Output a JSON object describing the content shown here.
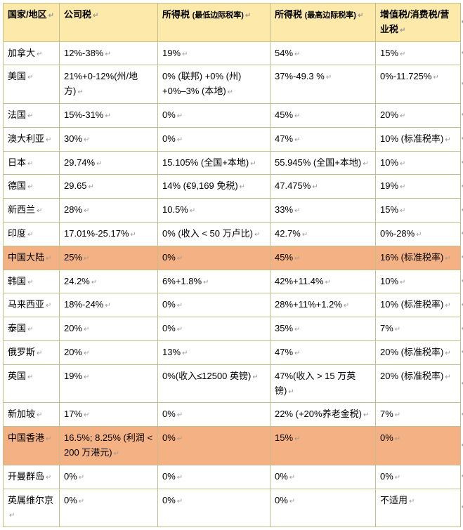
{
  "table": {
    "header_bg": "#fde9a9",
    "highlight_bg": "#f4b183",
    "border_color": "#bfbf8f",
    "columns": [
      "国家/地区",
      "公司税",
      "所得税 (最低边际税率)",
      "所得税 (最高边际税率)",
      "增值税/消费税/营业税"
    ],
    "col_header_sub": [
      "",
      "",
      "(最低边际税率)",
      "(最高边际税率)",
      ""
    ],
    "rows": [
      {
        "hl": false,
        "cells": [
          "加拿大",
          "12%-38%",
          "19%",
          "54%",
          "15%"
        ]
      },
      {
        "hl": false,
        "cells": [
          "美国",
          "21%+0-12%(州/地方)",
          "0% (联邦) +0% (州) +0%–3% (本地)",
          "37%-49.3 %",
          "0%-11.725%"
        ]
      },
      {
        "hl": false,
        "cells": [
          "法国",
          "15%-31%",
          "0%",
          "45%",
          "20%"
        ]
      },
      {
        "hl": false,
        "cells": [
          "澳大利亚",
          "30%",
          "0%",
          "47%",
          "10% (标准税率)"
        ]
      },
      {
        "hl": false,
        "cells": [
          "日本",
          "29.74%",
          "15.105% (全国+本地)",
          "55.945% (全国+本地)",
          "10%"
        ]
      },
      {
        "hl": false,
        "cells": [
          "德国",
          "29.65",
          "14% (€9,169 免税)",
          "47.475%",
          "19%"
        ]
      },
      {
        "hl": false,
        "cells": [
          "新西兰",
          "28%",
          "10.5%",
          "33%",
          "15%"
        ]
      },
      {
        "hl": false,
        "cells": [
          "印度",
          "17.01%-25.17%",
          "0% (收入 < 50 万卢比)",
          "42.7%",
          "0%-28%"
        ]
      },
      {
        "hl": true,
        "cells": [
          "中国大陆",
          "25%",
          "0%",
          "45%",
          "16% (标准税率)"
        ]
      },
      {
        "hl": false,
        "cells": [
          "韩国",
          "24.2%",
          "6%+1.8%",
          "42%+11.4%",
          "10%"
        ]
      },
      {
        "hl": false,
        "cells": [
          "马来西亚",
          "18%-24%",
          "0%",
          "28%+11%+1.2%",
          "10% (标准税率)"
        ]
      },
      {
        "hl": false,
        "cells": [
          "泰国",
          "20%",
          "0%",
          "35%",
          "7%"
        ]
      },
      {
        "hl": false,
        "cells": [
          "俄罗斯",
          "20%",
          "13%",
          "47%",
          "20% (标准税率)"
        ]
      },
      {
        "hl": false,
        "cells": [
          "英国",
          "19%",
          "0%(收入≤12500 英镑)",
          "47%(收入 > 15 万英镑)",
          "20% (标准税率)"
        ]
      },
      {
        "hl": false,
        "cells": [
          "新加坡",
          "17%",
          "0%",
          "22% (+20%养老金税)",
          "7%"
        ]
      },
      {
        "hl": true,
        "cells": [
          "中国香港",
          "16.5%; 8.25% (利润 < 200 万港元)",
          "0%",
          "15%",
          "0%"
        ]
      },
      {
        "hl": false,
        "cells": [
          "开曼群岛",
          "0%",
          "0%",
          "0%",
          "0%"
        ]
      },
      {
        "hl": false,
        "cells": [
          "英属维尔京",
          "0%",
          "0%",
          "0%",
          "不适用"
        ]
      }
    ],
    "cell_marker": "↵",
    "row_marker": "↵"
  }
}
